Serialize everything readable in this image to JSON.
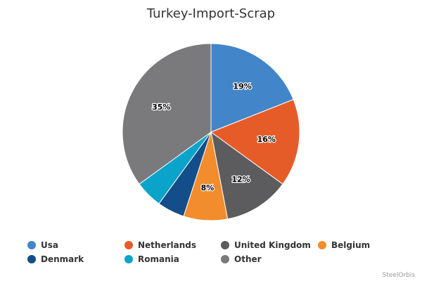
{
  "chart_data": {
    "type": "pie",
    "title": "Turkey-Import-Scrap",
    "slices": [
      {
        "name": "Usa",
        "value": 19,
        "label": "19%",
        "color": "#4285c9"
      },
      {
        "name": "Netherlands",
        "value": 16,
        "label": "16%",
        "color": "#e65c28"
      },
      {
        "name": "United Kingdom",
        "value": 12,
        "label": "12%",
        "color": "#5c5c5e"
      },
      {
        "name": "Belgium",
        "value": 8,
        "label": "8%",
        "color": "#f28c2c"
      },
      {
        "name": "Denmark",
        "value": 5,
        "label": "",
        "color": "#134d8a"
      },
      {
        "name": "Romania",
        "value": 5,
        "label": "",
        "color": "#0aa3c9"
      },
      {
        "name": "Other",
        "value": 35,
        "label": "35%",
        "color": "#7a7a7c"
      }
    ],
    "legend_position": "bottom"
  },
  "credit": "SteelOrbis"
}
